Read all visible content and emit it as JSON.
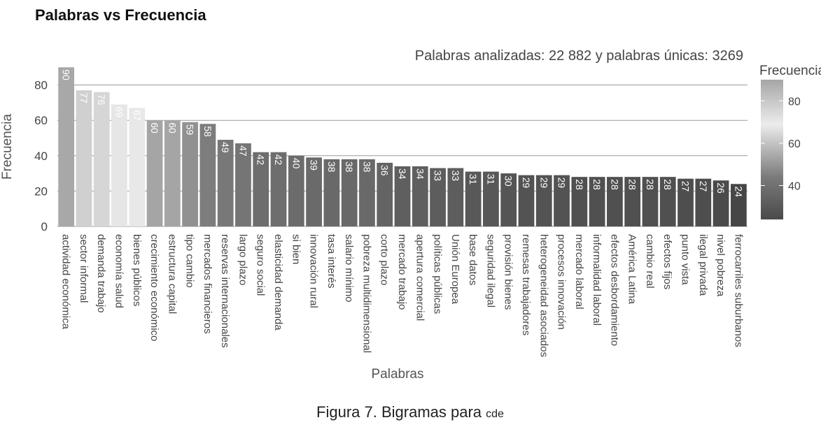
{
  "title": "Palabras vs Frecuencia",
  "subtitle": "Palabras analizadas: 22 882 y palabras únicas: 3269",
  "legend": {
    "title": "Frecuencia",
    "ticks": [
      40,
      60,
      80
    ]
  },
  "caption": {
    "figure_label": "Figura 7.",
    "text": " Bigramas para ",
    "acronym": "cde"
  },
  "chart_data": {
    "type": "bar",
    "xlabel": "Palabras",
    "ylabel": "Frecuencia",
    "ylim": [
      0,
      90
    ],
    "yticks": [
      0,
      20,
      40,
      60,
      80
    ],
    "grid": true,
    "color_scale": "gray gradient mapped to value",
    "categories": [
      "actividad económica",
      "sector informal",
      "demanda trabajo",
      "economía salud",
      "bienes públicos",
      "crecimiento económico",
      "estructura capital",
      "tipo cambio",
      "mercados financieros",
      "reservas internacionales",
      "largo plazo",
      "seguro social",
      "elasticidad demanda",
      "si bien",
      "innovación rural",
      "tasa interés",
      "salario mínimo",
      "pobreza multidimensional",
      "corto plazo",
      "mercado trabajo",
      "apertura comercial",
      "políticas públicas",
      "Unión Europea",
      "base datos",
      "seguridad ilegal",
      "provisión bienes",
      "remesas trabajadores",
      "heterogeneidad asociados",
      "procesos innovación",
      "mercado laboral",
      "informalidad laboral",
      "efectos desbordamiento",
      "América Latina",
      "cambio real",
      "efectos fijos",
      "punto vista",
      "ilegal privada",
      "nivel pobreza",
      "ferrocarriles suburbanos"
    ],
    "values": [
      90,
      77,
      76,
      69,
      67,
      60,
      60,
      59,
      58,
      49,
      47,
      42,
      42,
      40,
      39,
      38,
      38,
      38,
      36,
      34,
      34,
      33,
      33,
      31,
      31,
      30,
      29,
      29,
      29,
      28,
      28,
      28,
      28,
      28,
      28,
      27,
      27,
      26,
      24
    ]
  }
}
